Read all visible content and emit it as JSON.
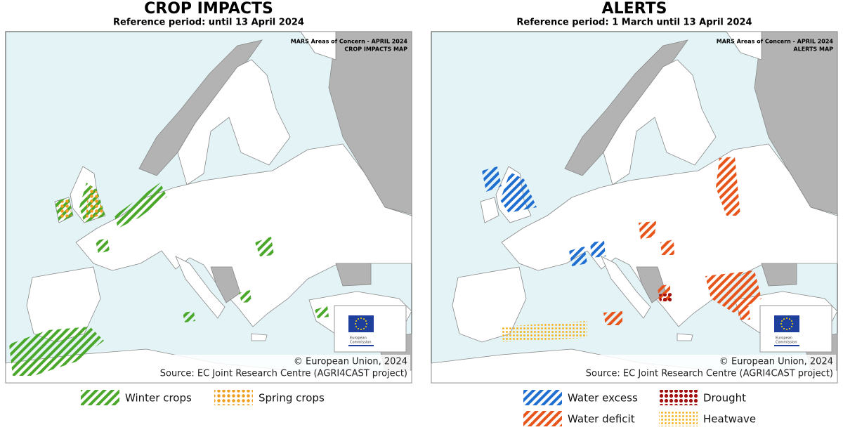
{
  "panels": [
    {
      "title": "CROP IMPACTS",
      "subtitle": "Reference period: until 13 April 2024",
      "map_label": [
        "MARS Areas of Concern - APRIL 2024",
        "CROP IMPACTS MAP"
      ],
      "logo_text": [
        "European",
        "Commission"
      ],
      "copyright": "© European Union, 2024",
      "source": "Source: EC Joint Research Centre (AGRI4CAST project)",
      "legend": [
        "Winter crops",
        "Spring crops"
      ]
    },
    {
      "title": "ALERTS",
      "subtitle": "Reference period: 1 March until 13 April 2024",
      "map_label": [
        "MARS Areas of Concern - APRIL 2024",
        "ALERTS MAP"
      ],
      "logo_text": [
        "European",
        "Commission"
      ],
      "copyright": "© European Union, 2024",
      "source": "Source: EC Joint Research Centre (AGRI4CAST project)",
      "legend": [
        "Water excess",
        "Drought",
        "Water deficit",
        "Heatwave"
      ]
    }
  ]
}
